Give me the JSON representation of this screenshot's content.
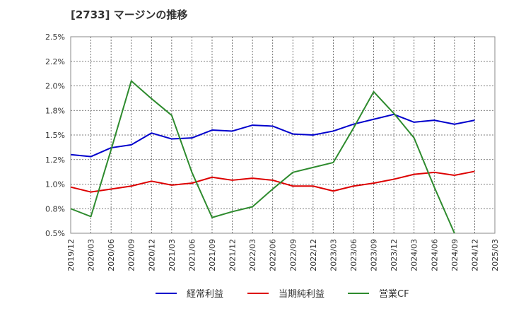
{
  "chart_data": {
    "type": "line",
    "title": "[2733]  マージンの推移",
    "x": [
      "2019/12",
      "2020/03",
      "2020/06",
      "2020/09",
      "2020/12",
      "2021/03",
      "2021/06",
      "2021/09",
      "2021/12",
      "2022/03",
      "2022/06",
      "2022/09",
      "2022/12",
      "2023/03",
      "2023/06",
      "2023/09",
      "2023/12",
      "2024/03",
      "2024/06",
      "2024/09",
      "2024/12",
      "2025/03"
    ],
    "y_ticks": [
      "0.5%",
      "0.8%",
      "1.0%",
      "1.2%",
      "1.5%",
      "1.8%",
      "2.0%",
      "2.2%",
      "2.5%"
    ],
    "ylim": [
      0.5,
      2.5
    ],
    "grid": true,
    "legend_position": "bottom",
    "series": [
      {
        "name": "経常利益",
        "color": "#0000cc",
        "values": [
          1.3,
          1.28,
          1.37,
          1.4,
          1.52,
          1.46,
          1.47,
          1.55,
          1.54,
          1.6,
          1.59,
          1.51,
          1.5,
          1.54,
          1.61,
          1.66,
          1.71,
          1.63,
          1.65,
          1.61,
          1.65,
          null
        ]
      },
      {
        "name": "当期純利益",
        "color": "#dd0000",
        "values": [
          0.97,
          0.92,
          0.95,
          0.98,
          1.03,
          0.99,
          1.01,
          1.07,
          1.04,
          1.06,
          1.04,
          0.98,
          0.98,
          0.93,
          0.98,
          1.01,
          1.05,
          1.1,
          1.12,
          1.09,
          1.13,
          null
        ]
      },
      {
        "name": "営業CF",
        "color": "#2e8b2e",
        "values": [
          0.75,
          0.67,
          1.35,
          2.05,
          1.87,
          1.7,
          1.12,
          0.66,
          0.72,
          0.77,
          0.95,
          1.12,
          1.17,
          1.22,
          1.57,
          1.94,
          1.72,
          1.47,
          0.97,
          0.5,
          null,
          null
        ]
      }
    ]
  }
}
